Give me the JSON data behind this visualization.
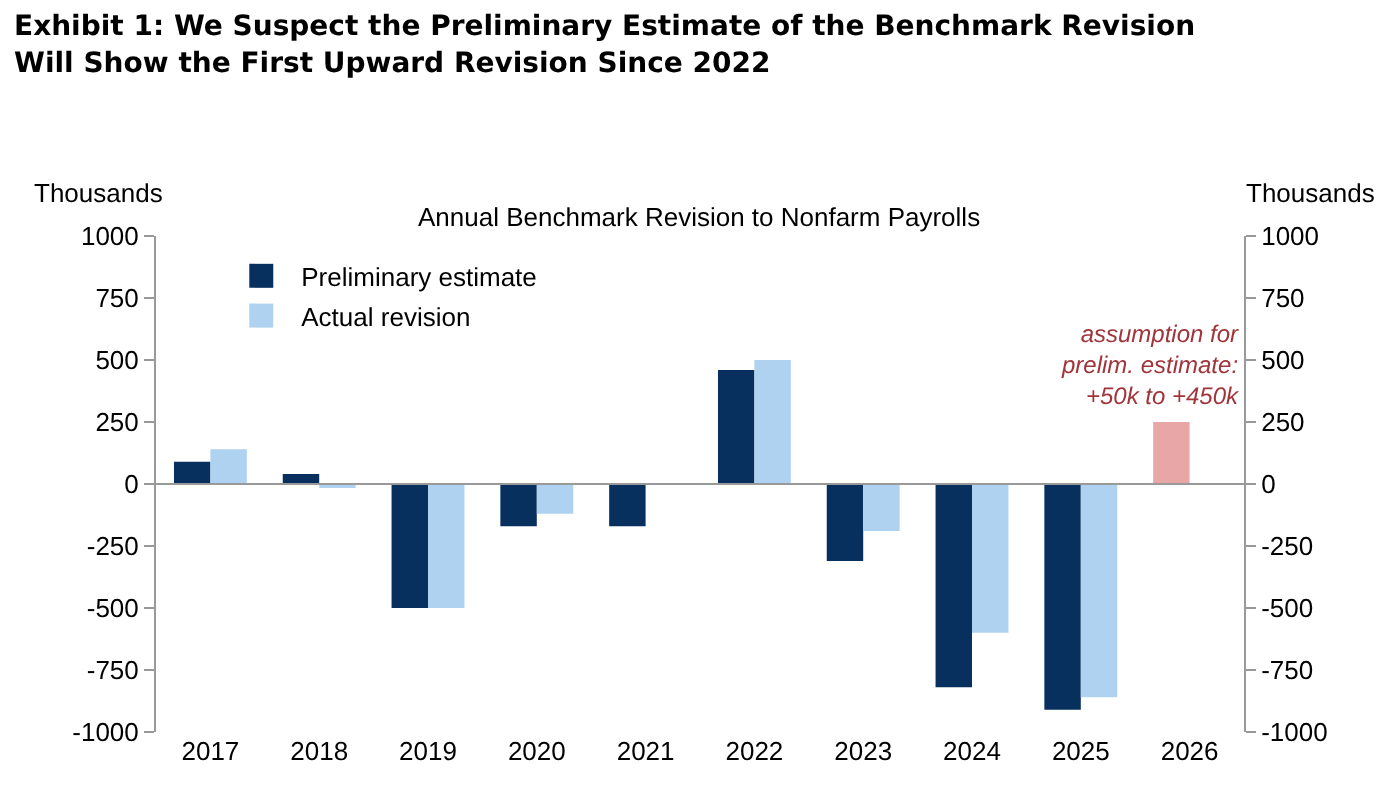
{
  "chart_data": {
    "type": "bar",
    "title": "Exhibit 1: We Suspect the Preliminary Estimate of the Benchmark Revision Will Show the First Upward Revision Since 2022",
    "subtitle": "Annual Benchmark Revision to Nonfarm Payrolls",
    "ylabel": "Thousands",
    "y2label": "Thousands",
    "categories": [
      "2017",
      "2018",
      "2019",
      "2020",
      "2021",
      "2022",
      "2023",
      "2024",
      "2025",
      "2026"
    ],
    "series": [
      {
        "name": "Preliminary estimate",
        "color": "#08305e",
        "colors": [
          null,
          null,
          null,
          null,
          null,
          null,
          null,
          null,
          null,
          "#e8a6a6"
        ],
        "values": [
          90,
          40,
          -500,
          -170,
          -170,
          460,
          -310,
          -820,
          -910,
          250
        ]
      },
      {
        "name": "Actual revision",
        "color": "#aed2f0",
        "values": [
          140,
          -10,
          -500,
          -120,
          0,
          500,
          -190,
          -600,
          -860,
          null
        ]
      }
    ],
    "ylim": [
      -1000,
      1000
    ],
    "yticks": [
      -1000,
      -750,
      -500,
      -250,
      0,
      250,
      500,
      750,
      1000
    ],
    "y2lim": [
      -1000,
      1000
    ],
    "y2ticks": [
      -1000,
      -750,
      -500,
      -250,
      0,
      250,
      500,
      750,
      1000
    ],
    "annotations": [
      "assumption for prelim. estimate: +50k to +450k"
    ],
    "ref_lines": [
      {
        "axis": "y",
        "value": 0,
        "color": "#999999"
      }
    ],
    "grid": false,
    "legend": "top left"
  }
}
